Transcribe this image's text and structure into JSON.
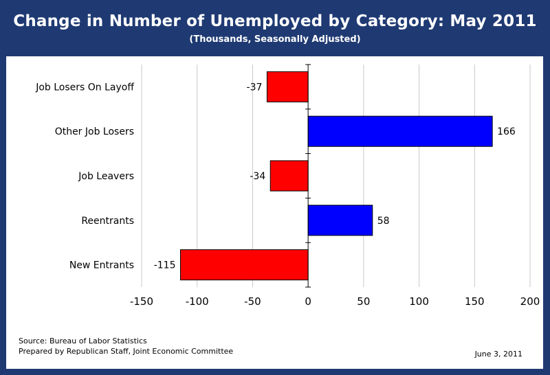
{
  "header": {
    "title": "Change in Number of Unemployed by Category:  May 2011",
    "subtitle": "(Thousands, Seasonally Adjusted)"
  },
  "footer": {
    "source": "Source:  Bureau of Labor Statistics",
    "prepared_by": "Prepared by Republican Staff, Joint Economic Committee",
    "date": "June 3, 2011"
  },
  "colors": {
    "background": "#1f3a73",
    "negative": "#ff0000",
    "positive": "#0000ff"
  },
  "chart_data": {
    "type": "bar",
    "orientation": "horizontal",
    "title": "Change in Number of Unemployed by Category:  May 2011",
    "subtitle": "(Thousands, Seasonally Adjusted)",
    "categories": [
      "Job Losers On Layoff",
      "Other Job Losers",
      "Job Leavers",
      "Reentrants",
      "New Entrants"
    ],
    "values": [
      -37,
      166,
      -34,
      58,
      -115
    ],
    "data_labels": [
      "-37",
      "166",
      "-34",
      "58",
      "-115"
    ],
    "xlim": [
      -150,
      200
    ],
    "x_ticks": [
      -150,
      -100,
      -50,
      0,
      50,
      100,
      150,
      200
    ],
    "x_tick_labels": [
      "-150",
      "-100",
      "-50",
      "0",
      "50",
      "100",
      "150",
      "200"
    ],
    "grid": "vertical",
    "legend": "none"
  }
}
